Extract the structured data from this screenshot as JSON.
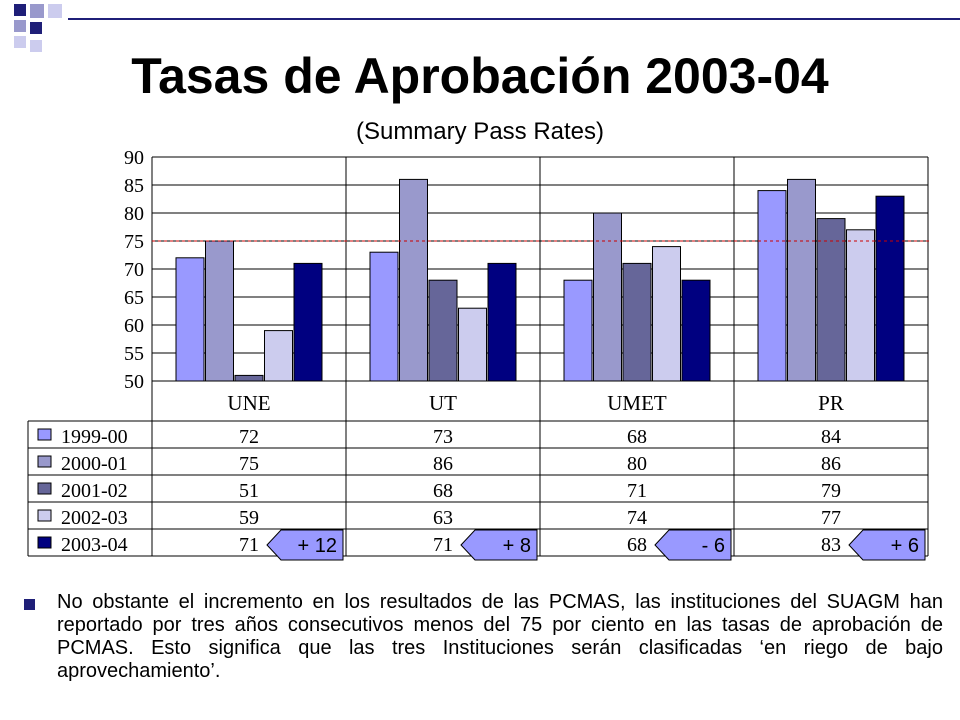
{
  "slide": {
    "title": "Tasas de Aprobación 2003-04",
    "subtitle": "(Summary Pass Rates)",
    "bullet": "No obstante el incremento en los resultados de las PCMAS, las instituciones del SUAGM han reportado por tres años consecutivos menos del 75 por ciento en las tasas de aprobación de PCMAS.  Esto significa que las tres Instituciones serán clasificadas ‘en riego de bajo aprovechamiento’."
  },
  "colors": {
    "series": [
      "#9999ff",
      "#9999cc",
      "#666699",
      "#ccccee",
      "#000080"
    ],
    "reference_line": "#cc0000",
    "callout_fill": "#9999ff",
    "bullet": "#1f1f78"
  },
  "chart_data": {
    "type": "bar",
    "categories": [
      "UNE",
      "UT",
      "UMET",
      "PR"
    ],
    "series": [
      {
        "name": "1999-00",
        "values": [
          72,
          73,
          68,
          84
        ]
      },
      {
        "name": "2000-01",
        "values": [
          75,
          86,
          80,
          86
        ]
      },
      {
        "name": "2001-02",
        "values": [
          51,
          68,
          71,
          79
        ]
      },
      {
        "name": "2002-03",
        "values": [
          59,
          63,
          74,
          77
        ]
      },
      {
        "name": "2003-04",
        "values": [
          71,
          71,
          68,
          83
        ]
      }
    ],
    "ylim": [
      50,
      90
    ],
    "yticks": [
      50,
      55,
      60,
      65,
      70,
      75,
      80,
      85,
      90
    ],
    "reference_line": 75,
    "grid": true,
    "legend": "data table below chart",
    "annotations": [
      "+ 12",
      "+ 8",
      "- 6",
      "+ 6"
    ]
  }
}
